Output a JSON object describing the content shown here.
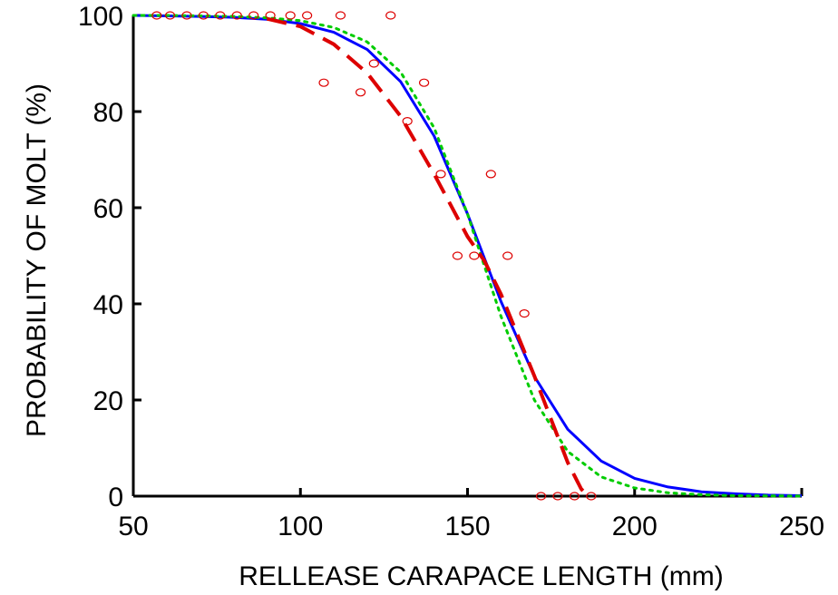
{
  "chart_data": {
    "type": "line",
    "title": "",
    "xlabel": "RELLEASE CARAPACE LENGTH (mm)",
    "ylabel": "PROBABILITY OF MOLT (%)",
    "xlim": [
      50,
      250
    ],
    "ylim": [
      0,
      100
    ],
    "xticks": [
      "50",
      "100",
      "150",
      "200",
      "250"
    ],
    "yticks": [
      "0",
      "20",
      "40",
      "60",
      "80",
      "100"
    ],
    "grid": false,
    "legend": "none",
    "series": [
      {
        "style": "solid",
        "color": "#0000ff",
        "x": [
          50,
          60,
          70,
          80,
          90,
          100,
          110,
          120,
          130,
          140,
          150,
          155,
          160,
          170,
          180,
          190,
          200,
          210,
          220,
          230,
          240,
          250
        ],
        "y": [
          100,
          99.9,
          99.8,
          99.6,
          99.2,
          98.3,
          96.5,
          92.9,
          86.2,
          74.9,
          58.7,
          49.6,
          40.5,
          24.9,
          13.9,
          7.3,
          3.7,
          1.9,
          0.9,
          0.5,
          0.2,
          0.1
        ]
      },
      {
        "style": "dotted",
        "color": "#00cc00",
        "x": [
          50,
          60,
          70,
          80,
          90,
          100,
          110,
          120,
          130,
          140,
          150,
          155,
          160,
          170,
          180,
          190,
          200,
          210,
          220,
          230,
          240,
          250
        ],
        "y": [
          100,
          100,
          99.9,
          99.8,
          99.5,
          98.9,
          97.5,
          94.5,
          88.2,
          76.6,
          58.7,
          48.0,
          37.4,
          20.0,
          9.3,
          4.0,
          1.7,
          0.7,
          0.3,
          0.1,
          0.05,
          0.02
        ]
      },
      {
        "style": "dashed",
        "color": "#dd0000",
        "x": [
          90,
          100,
          110,
          120,
          130,
          140,
          150,
          155,
          160,
          170,
          175,
          180,
          184,
          186
        ],
        "y": [
          99.3,
          97.7,
          94.0,
          88.0,
          79.0,
          67.0,
          54.0,
          49.0,
          42.0,
          25.0,
          16.0,
          7.0,
          1.5,
          0
        ]
      },
      {
        "style": "markers",
        "color": "#dd0000",
        "x": [
          57,
          61,
          66,
          71,
          76,
          81,
          86,
          91,
          97,
          102,
          112,
          127,
          107,
          118,
          122,
          132,
          137,
          142,
          147,
          152,
          157,
          162,
          167,
          172,
          177,
          182,
          187
        ],
        "y": [
          100,
          100,
          100,
          100,
          100,
          100,
          100,
          100,
          100,
          100,
          100,
          100,
          86,
          84,
          90,
          78,
          86,
          67,
          50,
          50,
          67,
          50,
          38,
          0,
          0,
          0,
          0
        ]
      }
    ]
  }
}
